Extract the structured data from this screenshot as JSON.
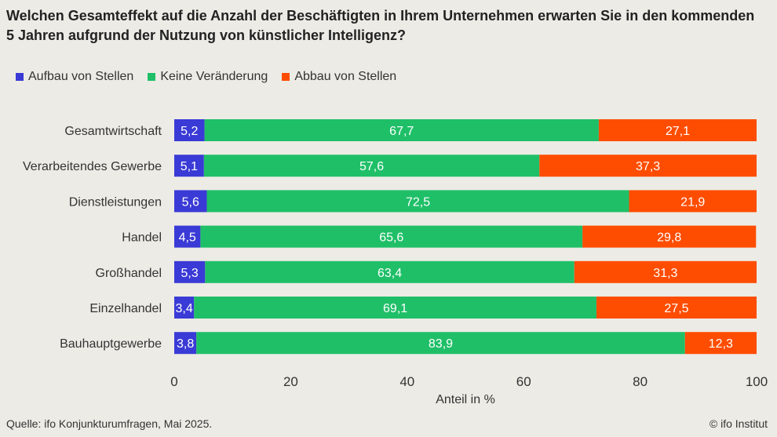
{
  "title": "Welchen Gesamteffekt auf die Anzahl der Beschäftigten in Ihrem Unternehmen erwarten Sie in den kommenden 5 Jahren aufgrund der Nutzung von künstlicher Intelligenz?",
  "source": "Quelle: ifo Konjunkturumfragen, Mai 2025.",
  "credit": "© ifo Institut",
  "chart_data": {
    "type": "bar",
    "orientation": "horizontal",
    "stacked": true,
    "categories": [
      "Gesamtwirtschaft",
      "Verarbeitendes Gewerbe",
      "Dienstleistungen",
      "Handel",
      "Großhandel",
      "Einzelhandel",
      "Bauhauptgewerbe"
    ],
    "series": [
      {
        "name": "Aufbau von Stellen",
        "color": "#3a3ad6",
        "values": [
          5.2,
          5.1,
          5.6,
          4.5,
          5.3,
          3.4,
          3.8
        ],
        "labels": [
          "5,2",
          "5,1",
          "5,6",
          "4,5",
          "5,3",
          "3,4",
          "3,8"
        ]
      },
      {
        "name": "Keine Veränderung",
        "color": "#1fbf68",
        "values": [
          67.7,
          57.6,
          72.5,
          65.6,
          63.4,
          69.1,
          83.9
        ],
        "labels": [
          "67,7",
          "57,6",
          "72,5",
          "65,6",
          "63,4",
          "69,1",
          "83,9"
        ]
      },
      {
        "name": "Abbau von Stellen",
        "color": "#fe4d00",
        "values": [
          27.1,
          37.3,
          21.9,
          29.8,
          31.3,
          27.5,
          12.3
        ],
        "labels": [
          "27,1",
          "37,3",
          "21,9",
          "29,8",
          "31,3",
          "27,5",
          "12,3"
        ]
      }
    ],
    "xlabel": "Anteil in %",
    "xlim": [
      0,
      100
    ],
    "xticks": [
      0,
      20,
      40,
      60,
      80,
      100
    ],
    "xtick_labels": [
      "0",
      "20",
      "40",
      "60",
      "80",
      "100"
    ],
    "legend_position": "top-left",
    "grid": false
  }
}
